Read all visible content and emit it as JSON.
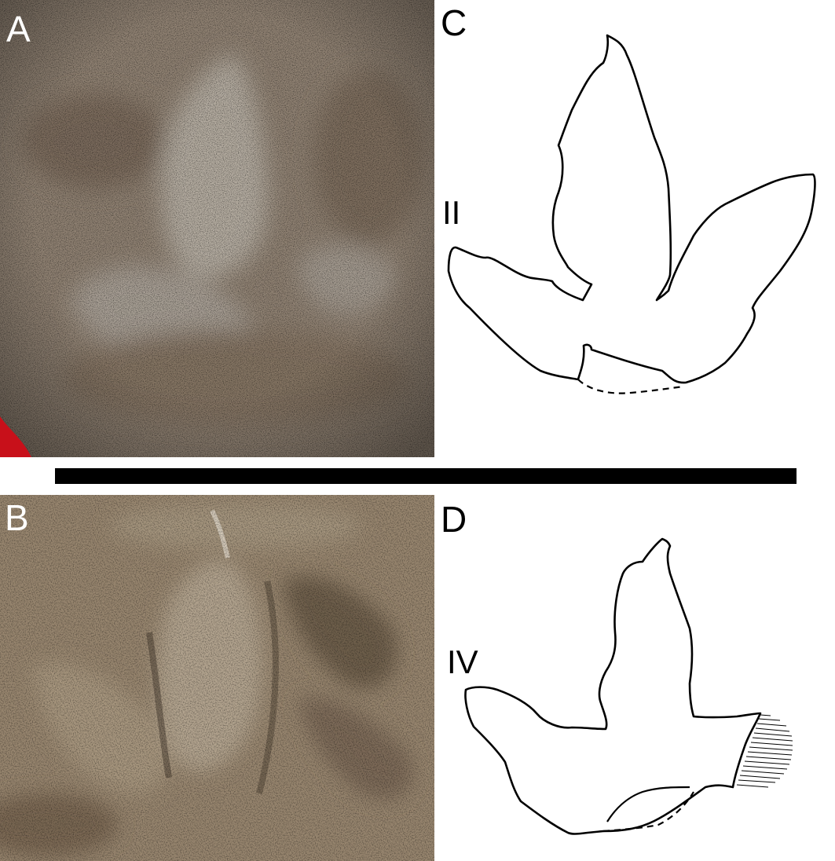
{
  "figure": {
    "panels": [
      {
        "letter": "A",
        "kind": "photograph"
      },
      {
        "letter": "B",
        "kind": "photograph"
      },
      {
        "letter": "C",
        "kind": "outline-drawing",
        "digit_label": "II"
      },
      {
        "letter": "D",
        "kind": "outline-drawing",
        "digit_label": "IV"
      }
    ]
  },
  "colors": {
    "sandstone_a": "#8f8172",
    "sandstone_b": "#98866f",
    "matrix_red": "#c8101a",
    "outline": "#000000",
    "separator": "#000000"
  }
}
